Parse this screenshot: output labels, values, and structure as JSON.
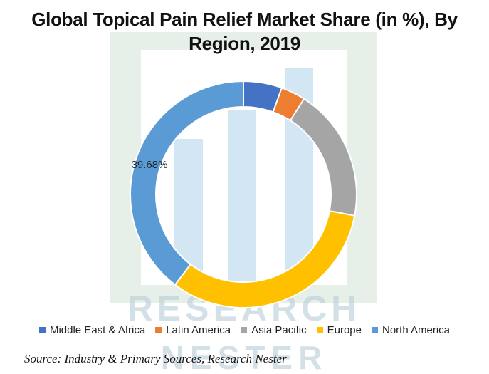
{
  "chart_data": {
    "type": "pie",
    "title": "Global Topical Pain Relief Market Share (in %), By Region, 2019",
    "categories": [
      "Middle East & Africa",
      "Latin America",
      "Asia Pacific",
      "Europe",
      "North America"
    ],
    "values": [
      5.5,
      3.5,
      19.0,
      32.32,
      39.68
    ],
    "colors": [
      "#4472C4",
      "#ED7D31",
      "#A5A5A5",
      "#FFC000",
      "#5B9BD5"
    ],
    "data_labels": [
      {
        "category": "North America",
        "text": "39.68%"
      }
    ],
    "legend_position": "bottom",
    "hole": true
  },
  "watermark": {
    "line1": "RESEARCH",
    "line2": "NESTER"
  },
  "source": "Source: Industry & Primary Sources, Research Nester"
}
